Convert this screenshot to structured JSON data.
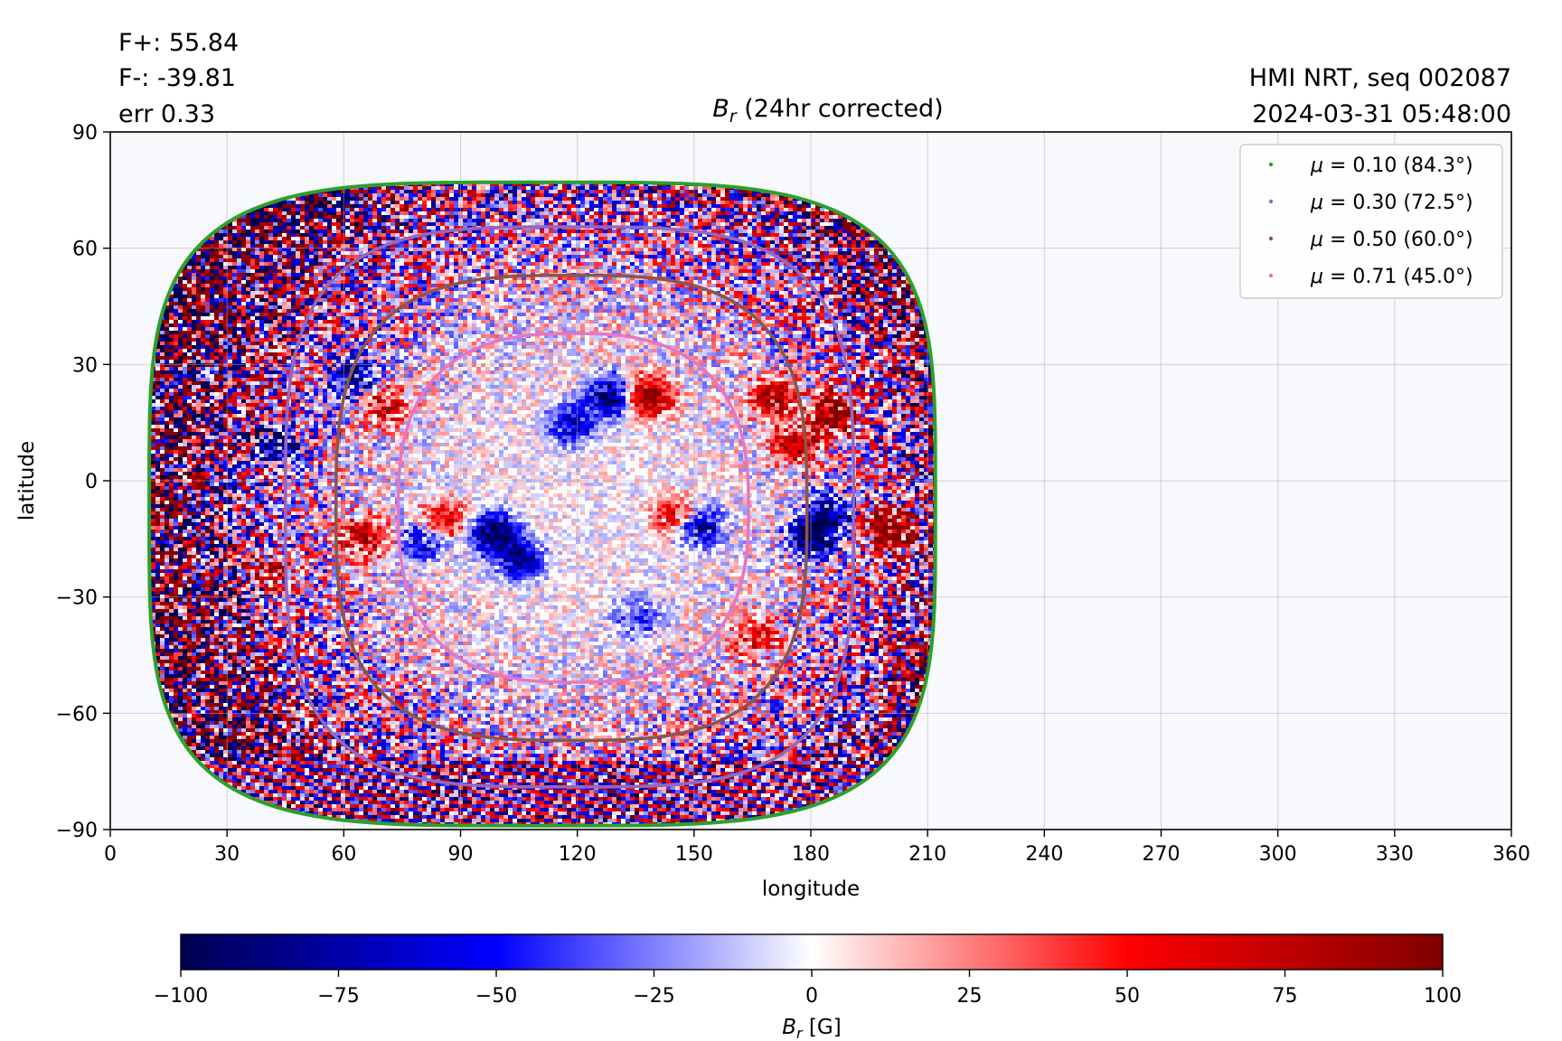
{
  "info": {
    "flux_pos": "F+: 55.84",
    "flux_neg": "F-: -39.81",
    "err": "err 0.33",
    "instrument": "HMI NRT, seq 002087",
    "timestamp": "2024-03-31 05:48:00"
  },
  "chart_data": {
    "type": "heatmap",
    "title_symbol": "B",
    "title_sub": "r",
    "title_rest": " (24hr corrected)",
    "xlabel": "longitude",
    "ylabel": "latitude",
    "xlim": [
      0,
      360
    ],
    "ylim": [
      -90,
      90
    ],
    "xticks": [
      0,
      30,
      60,
      90,
      120,
      150,
      180,
      210,
      240,
      270,
      300,
      330,
      360
    ],
    "yticks": [
      90,
      60,
      30,
      0,
      -30,
      -60,
      -90
    ],
    "ytick_labels": [
      "90",
      "60",
      "30",
      "0",
      "−30",
      "−60",
      "−90"
    ],
    "grid": true,
    "disk_center_lon": 120,
    "disk_center_lat": -6,
    "colorbar": {
      "range": [
        -100,
        100
      ],
      "ticks": [
        -100,
        -75,
        -50,
        -25,
        0,
        25,
        50,
        75,
        100
      ],
      "tick_labels": [
        "−100",
        "−75",
        "−50",
        "−25",
        "0",
        "25",
        "50",
        "75",
        "100"
      ],
      "label_symbol": "B",
      "label_sub": "r",
      "label_unit": " [G]",
      "colors": [
        "#000050",
        "#0000ff",
        "#ffffff",
        "#ff0000",
        "#800000"
      ]
    },
    "legend": {
      "position": "top-right",
      "entries": [
        {
          "mu": "0.10",
          "angle": "84.3",
          "color": "#2ca02c"
        },
        {
          "mu": "0.30",
          "angle": "72.5",
          "color": "#9467bd"
        },
        {
          "mu": "0.50",
          "angle": "60.0",
          "color": "#8c564b"
        },
        {
          "mu": "0.71",
          "angle": "45.0",
          "color": "#e377c2"
        }
      ]
    },
    "contours": [
      {
        "mu": 0.1,
        "color": "#2ca02c",
        "lon_min": 10,
        "lon_max": 212,
        "lat_top": 77,
        "lat_bottom": -89
      },
      {
        "mu": 0.3,
        "color": "#9467bd",
        "lon_min": 45,
        "lon_max": 191,
        "lat_top": 65.5,
        "lat_bottom": -79
      },
      {
        "mu": 0.5,
        "color": "#8c564b",
        "lon_min": 58,
        "lon_max": 179,
        "lat_top": 53,
        "lat_bottom": -67
      },
      {
        "mu": 0.71,
        "color": "#e377c2",
        "lon_min": 74,
        "lon_max": 164,
        "lat_top": 38,
        "lat_bottom": -52
      }
    ],
    "active_regions": [
      {
        "lon": 200,
        "lat": -12,
        "sign": 1,
        "strength": 1.0
      },
      {
        "lon": 186,
        "lat": 18,
        "sign": 1,
        "strength": 0.9
      },
      {
        "lon": 176,
        "lat": 10,
        "sign": 1,
        "strength": 0.6
      },
      {
        "lon": 170,
        "lat": 22,
        "sign": 1,
        "strength": 0.7
      },
      {
        "lon": 138,
        "lat": 22,
        "sign": 1,
        "strength": 0.8
      },
      {
        "lon": 128,
        "lat": 22,
        "sign": -1,
        "strength": 0.7
      },
      {
        "lon": 118,
        "lat": 15,
        "sign": -1,
        "strength": 0.5
      },
      {
        "lon": 180,
        "lat": -14,
        "sign": -1,
        "strength": 0.8
      },
      {
        "lon": 184,
        "lat": -8,
        "sign": -1,
        "strength": 0.6
      },
      {
        "lon": 150,
        "lat": -11,
        "sign": -1,
        "strength": 0.7
      },
      {
        "lon": 145,
        "lat": -9,
        "sign": 1,
        "strength": 0.6
      },
      {
        "lon": 98,
        "lat": -13,
        "sign": -1,
        "strength": 0.8
      },
      {
        "lon": 105,
        "lat": -20,
        "sign": -1,
        "strength": 0.6
      },
      {
        "lon": 85,
        "lat": -10,
        "sign": 1,
        "strength": 0.5
      },
      {
        "lon": 80,
        "lat": -15,
        "sign": -1,
        "strength": 0.5
      },
      {
        "lon": 65,
        "lat": -14,
        "sign": 1,
        "strength": 0.6
      },
      {
        "lon": 62,
        "lat": 27,
        "sign": -1,
        "strength": 0.6
      },
      {
        "lon": 70,
        "lat": 20,
        "sign": 1,
        "strength": 0.5
      },
      {
        "lon": 42,
        "lat": 10,
        "sign": -1,
        "strength": 0.6
      },
      {
        "lon": 40,
        "lat": -24,
        "sign": 1,
        "strength": 0.7
      },
      {
        "lon": 36,
        "lat": -28,
        "sign": -1,
        "strength": 0.5
      },
      {
        "lon": 165,
        "lat": -40,
        "sign": 1,
        "strength": 0.4
      },
      {
        "lon": 135,
        "lat": -35,
        "sign": -1,
        "strength": 0.3
      }
    ]
  }
}
